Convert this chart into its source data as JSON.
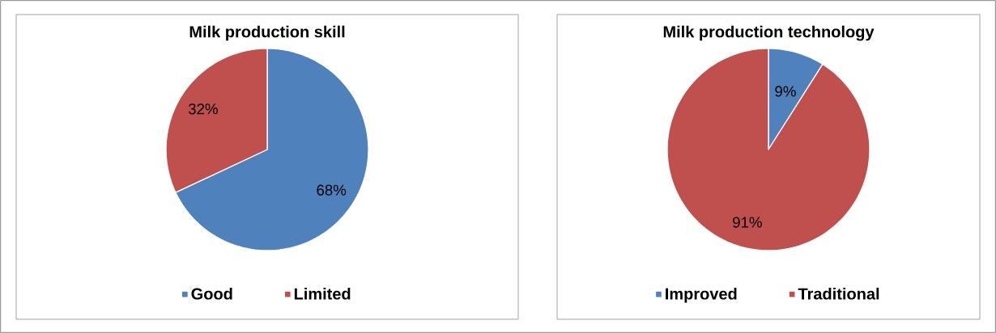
{
  "chart_data": [
    {
      "type": "pie",
      "title": "Milk production skill",
      "categories": [
        "Good",
        "Limited"
      ],
      "values": [
        68,
        32
      ],
      "colors": [
        "#4f81bd",
        "#c0504d"
      ],
      "value_labels": [
        "68%",
        "32%"
      ],
      "legend": "bottom"
    },
    {
      "type": "pie",
      "title": "Milk production technology",
      "categories": [
        "Improved",
        "Traditional"
      ],
      "values": [
        9,
        91
      ],
      "colors": [
        "#4f81bd",
        "#c0504d"
      ],
      "value_labels": [
        "9%",
        "91%"
      ],
      "legend": "bottom"
    }
  ]
}
